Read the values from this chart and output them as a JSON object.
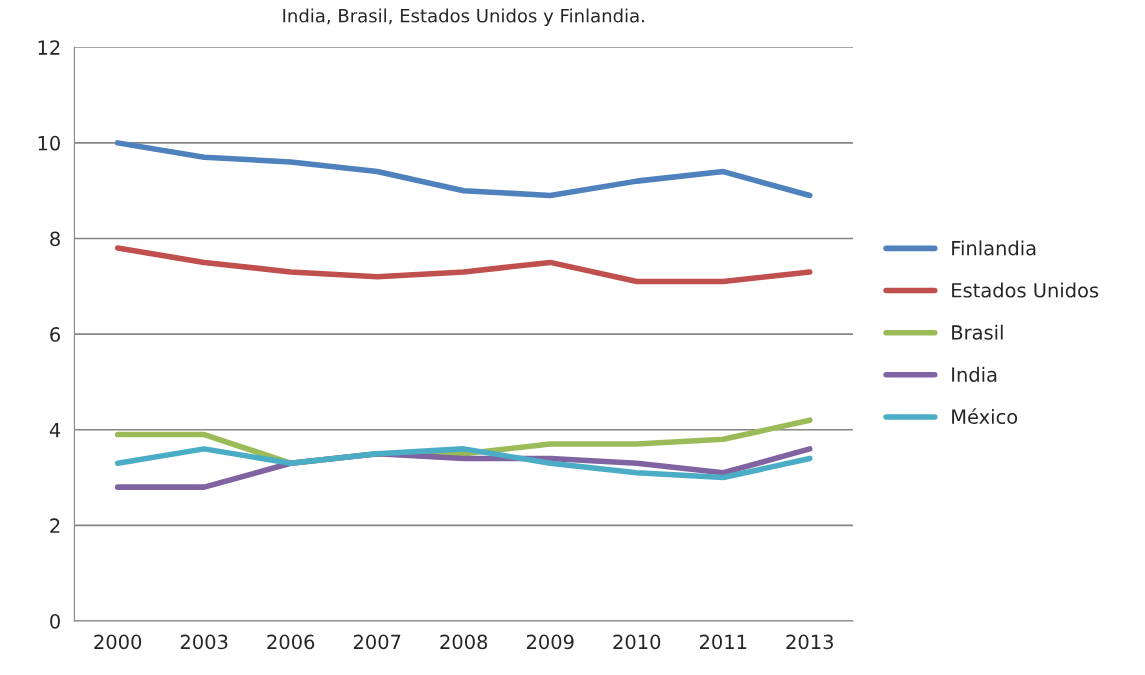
{
  "chart_data": {
    "type": "line",
    "title": "India, Brasil, Estados Unidos y Finlandia.",
    "categories": [
      "2000",
      "2003",
      "2006",
      "2007",
      "2008",
      "2009",
      "2010",
      "2011",
      "2013"
    ],
    "series": [
      {
        "name": "Finlandia",
        "color": "#4f81bd",
        "values": [
          10,
          9.7,
          9.6,
          9.4,
          9.0,
          8.9,
          9.2,
          9.4,
          8.9
        ]
      },
      {
        "name": "Estados Unidos",
        "color": "#c0504d",
        "values": [
          7.8,
          7.5,
          7.3,
          7.2,
          7.3,
          7.5,
          7.1,
          7.1,
          7.3
        ]
      },
      {
        "name": "Brasil",
        "color": "#9bbb59",
        "values": [
          3.9,
          3.9,
          3.3,
          3.5,
          3.5,
          3.7,
          3.7,
          3.8,
          4.2
        ]
      },
      {
        "name": "India",
        "color": "#8064a2",
        "values": [
          2.8,
          2.8,
          3.3,
          3.5,
          3.4,
          3.4,
          3.3,
          3.1,
          3.6
        ]
      },
      {
        "name": "México",
        "color": "#4bacc6",
        "values": [
          3.3,
          3.6,
          3.3,
          3.5,
          3.6,
          3.3,
          3.1,
          3.0,
          3.4
        ]
      }
    ],
    "ylim": [
      0,
      12
    ],
    "yticks": [
      0,
      2,
      4,
      6,
      8,
      10,
      12
    ],
    "grid": "y",
    "legend": "right",
    "marker": "none",
    "line_style": "solid"
  }
}
